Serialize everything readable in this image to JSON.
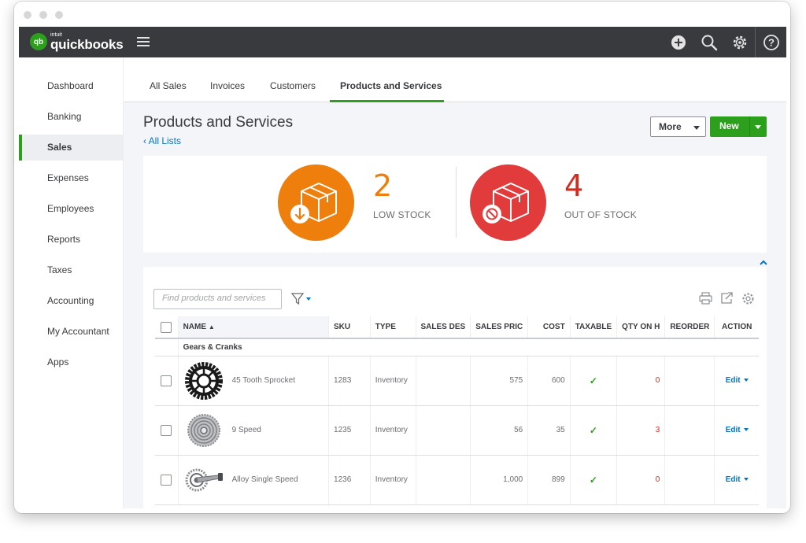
{
  "header": {
    "logo_small": "intuit",
    "logo_text": "quickbooks",
    "logo_badge": "qb",
    "icons": [
      "plus-icon",
      "search-icon",
      "gear-icon",
      "help-icon"
    ]
  },
  "sidebar": {
    "items": [
      {
        "label": "Dashboard"
      },
      {
        "label": "Banking"
      },
      {
        "label": "Sales",
        "active": true
      },
      {
        "label": "Expenses"
      },
      {
        "label": "Employees"
      },
      {
        "label": "Reports"
      },
      {
        "label": "Taxes"
      },
      {
        "label": "Accounting"
      },
      {
        "label": "My Accountant"
      },
      {
        "label": "Apps"
      }
    ]
  },
  "tabs": [
    {
      "label": "All Sales"
    },
    {
      "label": "Invoices"
    },
    {
      "label": "Customers"
    },
    {
      "label": "Products and Services",
      "active": true
    }
  ],
  "page": {
    "title": "Products and Services",
    "back_link": "All Lists",
    "more_label": "More",
    "new_label": "New"
  },
  "stock": {
    "low_count": "2",
    "low_label": "LOW STOCK",
    "out_count": "4",
    "out_label": "OUT OF STOCK",
    "low_color": "#ef7f0c",
    "out_color": "#e23b3b"
  },
  "table": {
    "search_placeholder": "Find products and services",
    "columns": [
      "NAME",
      "SKU",
      "TYPE",
      "SALES DES",
      "SALES PRIC",
      "COST",
      "TAXABLE",
      "QTY ON H",
      "REORDER",
      "ACTION"
    ],
    "group": "Gears & Cranks",
    "rows": [
      {
        "name": "45 Tooth Sprocket",
        "sku": "1283",
        "type": "Inventory",
        "sales_desc": "",
        "price": "575",
        "cost": "600",
        "taxable": "✓",
        "qty": "0",
        "reorder": "",
        "action": "Edit",
        "image": "sprocket-image"
      },
      {
        "name": "9 Speed",
        "sku": "1235",
        "type": "Inventory",
        "sales_desc": "",
        "price": "56",
        "cost": "35",
        "taxable": "✓",
        "qty": "3",
        "reorder": "",
        "action": "Edit",
        "image": "cassette-image"
      },
      {
        "name": "Alloy Single Speed",
        "sku": "1236",
        "type": "Inventory",
        "sales_desc": "",
        "price": "1,000",
        "cost": "899",
        "taxable": "✓",
        "qty": "0",
        "reorder": "",
        "action": "Edit",
        "image": "crankset-image"
      }
    ]
  }
}
